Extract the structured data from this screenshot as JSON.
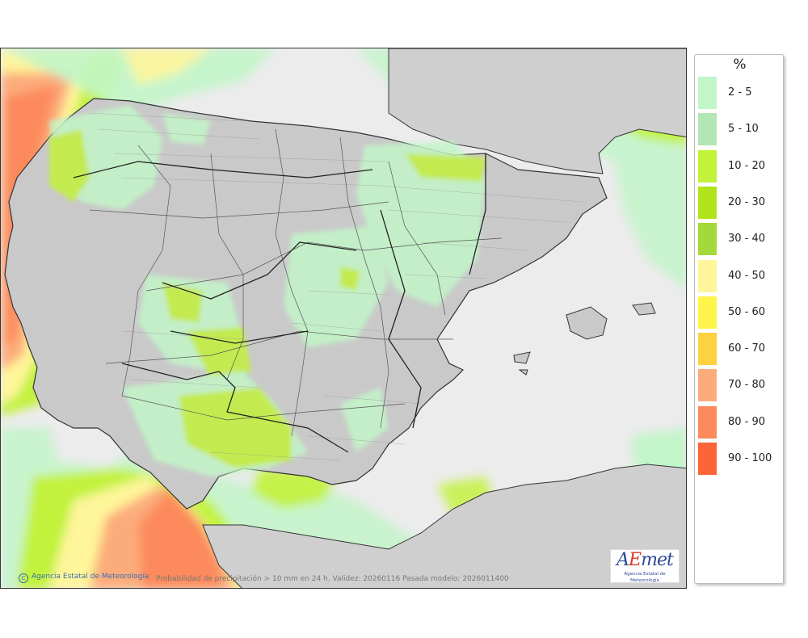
{
  "legend": {
    "unit": "%",
    "items": [
      {
        "label": "2 - 5",
        "color": "#c2f5c8"
      },
      {
        "label": "5 - 10",
        "color": "#b3e6b5"
      },
      {
        "label": "10 - 20",
        "color": "#c2f23a"
      },
      {
        "label": "20 - 30",
        "color": "#b1e41a"
      },
      {
        "label": "30 - 40",
        "color": "#a5d83a"
      },
      {
        "label": "40 - 50",
        "color": "#fff59a"
      },
      {
        "label": "50 - 60",
        "color": "#fff44a"
      },
      {
        "label": "60 - 70",
        "color": "#fdd140"
      },
      {
        "label": "70 - 80",
        "color": "#fcac7c"
      },
      {
        "label": "80 - 90",
        "color": "#fc8a5c"
      },
      {
        "label": "90 - 100",
        "color": "#fc6535"
      }
    ]
  },
  "map": {
    "credit": "Agencia Estatal de Meteorología",
    "caption": "Probabilidad de precipitación > 10 mm en 24 h. Validez: 20260116 Pasada modelo: 2026011400",
    "logo_brand": "AEmet",
    "logo_sub": "Agencia Estatal de Meteorología",
    "colors": {
      "sea": "#ececec",
      "land": "#c9c9c9",
      "border": "#333333"
    }
  }
}
